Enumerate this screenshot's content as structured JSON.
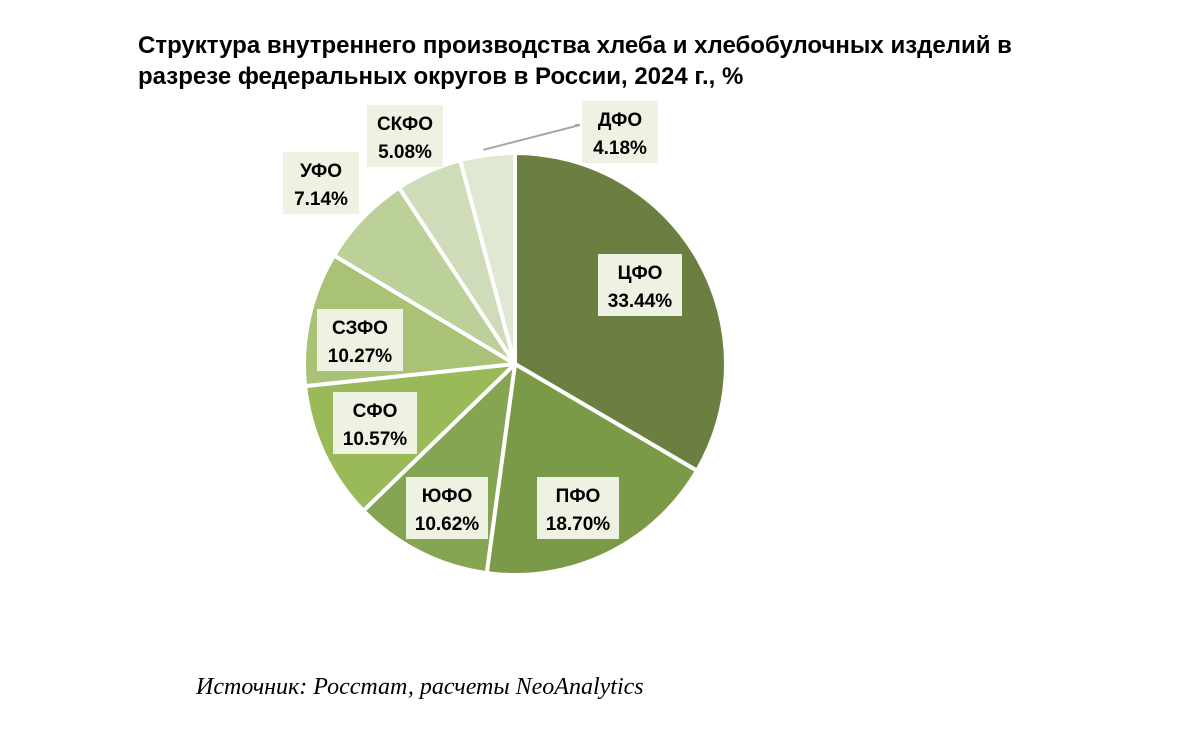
{
  "chart_data": {
    "type": "pie",
    "title_lines": [
      "Структура внутреннего производства хлеба и хлебобулочных изделий в",
      "разрезе федеральных округов в России, 2024 г., %"
    ],
    "slices": [
      {
        "name": "ЦФО",
        "value": 33.44,
        "label": "33.44%",
        "color": "#6b8040"
      },
      {
        "name": "ПФО",
        "value": 18.7,
        "label": "18.70%",
        "color": "#7b9a47"
      },
      {
        "name": "ЮФО",
        "value": 10.62,
        "label": "10.62%",
        "color": "#86a552"
      },
      {
        "name": "СФО",
        "value": 10.57,
        "label": "10.57%",
        "color": "#9aba5a"
      },
      {
        "name": "СЗФО",
        "value": 10.27,
        "label": "10.27%",
        "color": "#a9c275"
      },
      {
        "name": "УФО",
        "value": 7.14,
        "label": "7.14%",
        "color": "#bcd09a"
      },
      {
        "name": "СКФО",
        "value": 5.08,
        "label": "5.08%",
        "color": "#cfdcba"
      },
      {
        "name": "ДФО",
        "value": 4.18,
        "label": "4.18%",
        "color": "#dfe8d3"
      }
    ],
    "label_box_color": "#edf2e2",
    "leader_line_color": "#a6a6a6",
    "start_angle": "top",
    "direction": "clockwise"
  },
  "source": "Источник: Росстат, расчеты NeoAnalytics"
}
